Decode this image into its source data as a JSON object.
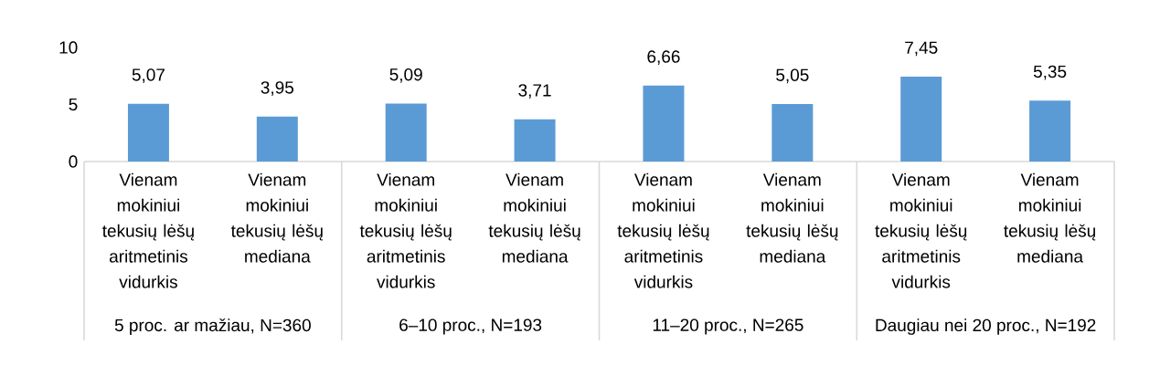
{
  "chart_data": {
    "type": "bar",
    "categories": [
      "Vienam mokiniui tekusių lėšų aritmetinis vidurkis",
      "Vienam mokiniui tekusių lėšų mediana",
      "Vienam mokiniui tekusių lėšų aritmetinis vidurkis",
      "Vienam mokiniui tekusių lėšų mediana",
      "Vienam mokiniui tekusių lėšų aritmetinis vidurkis",
      "Vienam mokiniui tekusių lėšų mediana",
      "Vienam mokiniui tekusių lėšų aritmetinis vidurkis",
      "Vienam mokiniui tekusių lėšų mediana"
    ],
    "values": [
      5.07,
      3.95,
      5.09,
      3.71,
      6.66,
      5.05,
      7.45,
      5.35
    ],
    "value_labels": [
      "5,07",
      "3,95",
      "5,09",
      "3,71",
      "6,66",
      "5,05",
      "7,45",
      "5,35"
    ],
    "color": "#5b9bd5",
    "ylim": [
      0,
      10
    ],
    "yticks": [
      0,
      5,
      10
    ],
    "annotations": [
      "5 proc. ar mažiau, N=360",
      "6–10 proc.,  N=193",
      "11–20 proc.,  N=265",
      "Daugiau nei 20 proc.,  N=192"
    ]
  }
}
